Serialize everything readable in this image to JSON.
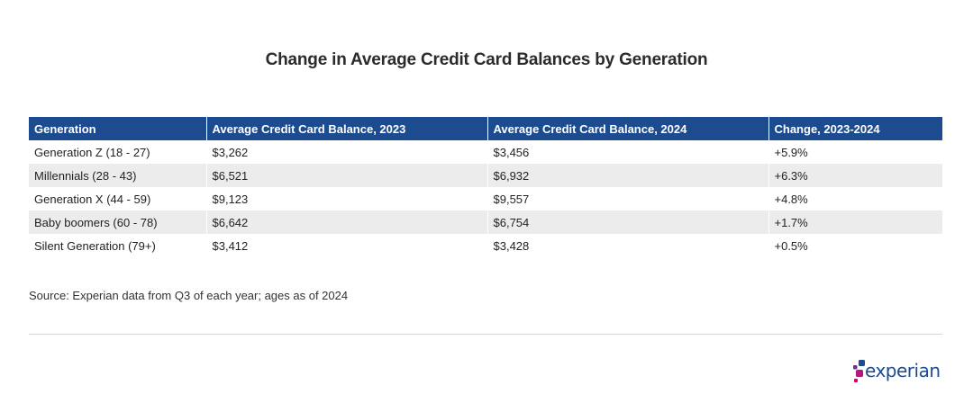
{
  "title": "Change in Average Credit Card Balances by Generation",
  "chart_data": {
    "type": "table",
    "title": "Change in Average Credit Card Balances by Generation",
    "columns": [
      "Generation",
      "Average Credit Card Balance, 2023",
      "Average Credit Card Balance, 2024",
      "Change, 2023-2024"
    ],
    "rows": [
      [
        "Generation Z (18 - 27)",
        "$3,262",
        "$3,456",
        "+5.9%"
      ],
      [
        "Millennials (28 - 43)",
        "$6,521",
        "$6,932",
        "+6.3%"
      ],
      [
        "Generation X (44 - 59)",
        "$9,123",
        "$9,557",
        "+4.8%"
      ],
      [
        "Baby boomers (60 - 78)",
        "$6,642",
        "$6,754",
        "+1.7%"
      ],
      [
        "Silent Generation (79+)",
        "$3,412",
        "$3,428",
        "+0.5%"
      ]
    ]
  },
  "source": "Source: Experian data from Q3 of each year; ages as of 2024",
  "logo": {
    "text": "experian",
    "icon": "experian-dots-icon",
    "colors": {
      "text": "#1d4b8f",
      "dot_blue": "#1d4b8f",
      "dot_purple": "#6b2f8f",
      "dot_magenta": "#b5177a",
      "dot_pink": "#d6006e"
    }
  },
  "colors": {
    "header_bg": "#1d4b8f",
    "row_alt_bg": "#ececec"
  }
}
